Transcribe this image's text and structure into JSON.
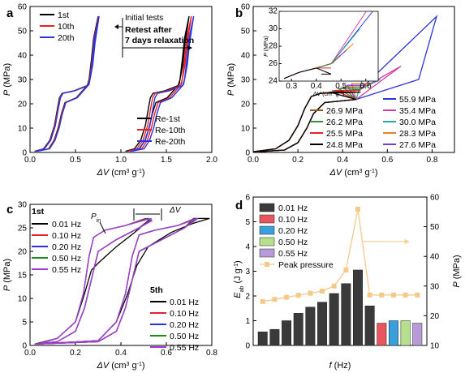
{
  "chart_data": [
    {
      "panel": "a",
      "type": "line",
      "xlabel": "ΔV (cm3 g-1)",
      "ylabel": "P (MPa)",
      "xlim": [
        0,
        2.0
      ],
      "ylim": [
        0,
        60
      ],
      "xticks": [
        "0.0",
        "0.5",
        "1.0",
        "1.5",
        "2.0"
      ],
      "yticks": [
        "0",
        "10",
        "20",
        "30",
        "40",
        "50",
        "60"
      ],
      "legend_top": [
        "1st",
        "10th",
        "20th"
      ],
      "legend_bottom": [
        "Re-1st",
        "Re-10th",
        "Re-20th"
      ],
      "colors": [
        "#000000",
        "#e8202a",
        "#2b34d9"
      ],
      "annotations": [
        "Initial tests",
        "Retest after",
        "7 days relaxation"
      ],
      "series": [
        {
          "name": "1st",
          "x": [
            0.02,
            0.1,
            0.2,
            0.25,
            0.32,
            0.36,
            0.45,
            0.58,
            0.7,
            0.73,
            0.76,
            0.8
          ],
          "y": [
            1,
            4,
            10,
            20,
            24,
            25,
            26,
            28,
            30,
            35,
            45,
            56
          ]
        },
        {
          "name": "Re-1st",
          "x": [
            1.02,
            1.1,
            1.2,
            1.25,
            1.32,
            1.36,
            1.45,
            1.58,
            1.7,
            1.73,
            1.76,
            1.82
          ],
          "y": [
            1,
            4,
            10,
            20,
            24,
            25,
            26,
            28,
            30,
            35,
            45,
            56
          ]
        }
      ]
    },
    {
      "panel": "b",
      "type": "line",
      "xlabel": "ΔV (cm3 g-1)",
      "ylabel": "P (MPa)",
      "xlim": [
        0,
        0.9
      ],
      "ylim": [
        0,
        60
      ],
      "xticks": [
        "0.0",
        "0.2",
        "0.4",
        "0.6",
        "0.8"
      ],
      "yticks": [
        "0",
        "10",
        "20",
        "30",
        "40",
        "50",
        "60"
      ],
      "legend": [
        "55.9 MPa",
        "35.4 MPa",
        "30.0 MPa",
        "28.3 MPa",
        "27.6 MPa",
        "26.9 MPa",
        "26.2 MPa",
        "25.5 MPa",
        "24.8 MPa"
      ],
      "legend_colors": [
        "#2b34d9",
        "#d63aa9",
        "#2aa7a7",
        "#e7821e",
        "#7a3ad6",
        "#8b5a2b",
        "#3a8f3a",
        "#e8202a",
        "#000000"
      ],
      "max_pressures": [
        55.9,
        35.4,
        30.0,
        28.3,
        27.6,
        26.9,
        26.2,
        25.5,
        24.8
      ],
      "inset": {
        "xlim": [
          0.25,
          0.65
        ],
        "ylim": [
          24,
          32
        ],
        "xticks": [
          "0.3",
          "0.4",
          "0.5",
          "0.6"
        ],
        "yticks": [
          "24",
          "26",
          "28",
          "30",
          "32"
        ],
        "xlabel": "ΔV (cm3 g-1)",
        "ylabel": "P (MPa)"
      }
    },
    {
      "panel": "c",
      "type": "line",
      "xlabel": "ΔV (cm3 g-1)",
      "ylabel": "P (MPa)",
      "xlim": [
        0,
        0.8
      ],
      "ylim": [
        0,
        30
      ],
      "xticks": [
        "0.0",
        "0.2",
        "0.4",
        "0.6",
        "0.8"
      ],
      "yticks": [
        "0",
        "5",
        "10",
        "15",
        "20",
        "25",
        "30"
      ],
      "legend_1st_title": "1st",
      "legend_5th_title": "5th",
      "legend": [
        "0.01 Hz",
        "0.10 Hz",
        "0.20 Hz",
        "0.50 Hz",
        "0.55 Hz"
      ],
      "colors": [
        "#000000",
        "#e8202a",
        "#2b34d9",
        "#1a8a1a",
        "#a83ad9"
      ],
      "annotations": [
        "Pin",
        "ΔV"
      ]
    },
    {
      "panel": "d",
      "type": "bar",
      "xlabel": "f (Hz)",
      "ylabel_left": "Eab (J g-1)",
      "ylabel_right": "P (MPa)",
      "ylim_left": [
        0,
        6
      ],
      "ylim_right": [
        10,
        60
      ],
      "yticks_left": [
        "0",
        "1",
        "2",
        "3",
        "4",
        "5",
        "6"
      ],
      "yticks_right": [
        "10",
        "20",
        "30",
        "40",
        "50",
        "60"
      ],
      "legend": [
        "0.01 Hz",
        "0.10 Hz",
        "0.20 Hz",
        "0.50 Hz",
        "0.55 Hz",
        "Peak pressure"
      ],
      "legend_colors": [
        "#3a3a3a",
        "#e8555c",
        "#3aa0dc",
        "#b6e08e",
        "#b89ad8",
        "#f5c98a"
      ],
      "bar_values": [
        0.55,
        0.65,
        1.0,
        1.3,
        1.55,
        1.75,
        2.1,
        2.5,
        3.05,
        1.6,
        0.9,
        1.0,
        1.0,
        0.9
      ],
      "bar_groups": [
        "0.01 Hz",
        "0.01 Hz",
        "0.01 Hz",
        "0.01 Hz",
        "0.01 Hz",
        "0.01 Hz",
        "0.01 Hz",
        "0.01 Hz",
        "0.01 Hz",
        "0.01 Hz",
        "0.10 Hz",
        "0.20 Hz",
        "0.50 Hz",
        "0.55 Hz"
      ],
      "peak_pressure": [
        24.8,
        25.5,
        26.2,
        26.9,
        27.6,
        28.3,
        30.0,
        35.4,
        55.9,
        27.0,
        27.0,
        27.0,
        27.0,
        27.0
      ]
    }
  ]
}
